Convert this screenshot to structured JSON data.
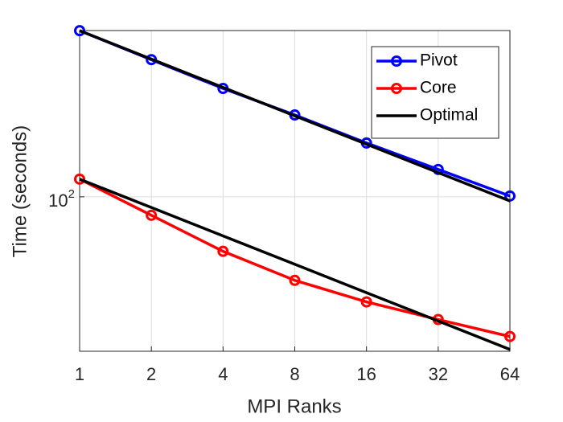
{
  "chart_data": {
    "type": "line",
    "xlabel": "MPI Ranks",
    "ylabel": "Time (seconds)",
    "x": [
      1,
      2,
      4,
      8,
      16,
      32,
      64
    ],
    "xscale": "log",
    "yscale": "log",
    "xlim": [
      1,
      64
    ],
    "xticks": [
      1,
      2,
      4,
      8,
      16,
      32,
      64
    ],
    "ylim": [
      2.3,
      5800
    ],
    "yticks": [
      {
        "value": 100,
        "label": "10^2"
      }
    ],
    "grid": true,
    "legend": "upper right",
    "series": [
      {
        "name": "Pivot",
        "color": "#0000ff",
        "marker": true,
        "values": [
          5780,
          2850,
          1410,
          738,
          372,
          195,
          102
        ]
      },
      {
        "name": "Core",
        "color": "#ff0000",
        "marker": true,
        "values": [
          154,
          63.7,
          26.4,
          13.0,
          7.68,
          4.99,
          3.3
        ]
      },
      {
        "name": "Optimal",
        "color": "#000000",
        "marker": false,
        "values": [
          5780,
          2890,
          1445,
          722.5,
          361.25,
          180.625,
          90.3125
        ]
      },
      {
        "color": "#000000",
        "marker": false,
        "values": [
          154,
          77,
          38.5,
          19.25,
          9.625,
          4.8125,
          2.40625
        ]
      }
    ]
  }
}
